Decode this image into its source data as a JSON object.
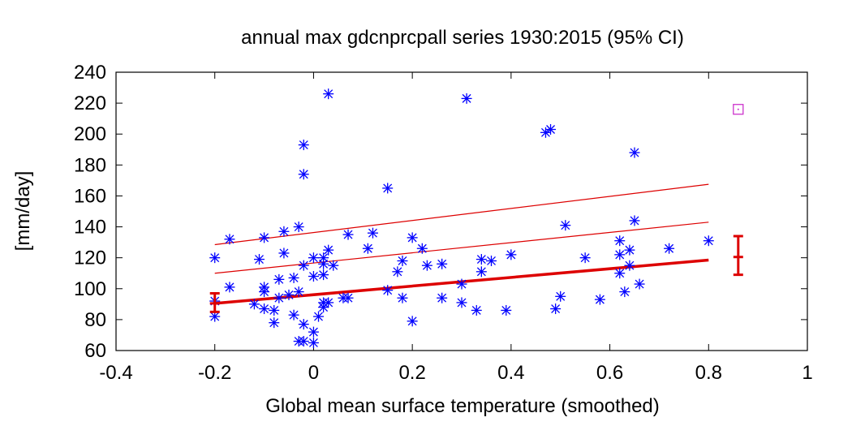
{
  "chart_data": {
    "type": "scatter",
    "title": "annual max gdcnprcpall series 1930:2015 (95% CI)",
    "xlabel": "Global mean surface temperature (smoothed)",
    "ylabel": "[mm/day]",
    "xlim": [
      -0.4,
      1.0
    ],
    "ylim": [
      60,
      240
    ],
    "xticks": [
      "-0.4",
      "-0.2",
      "0",
      "0.2",
      "0.4",
      "0.6",
      "0.8",
      "1"
    ],
    "yticks": [
      "60",
      "80",
      "100",
      "120",
      "140",
      "160",
      "180",
      "200",
      "220",
      "240"
    ],
    "grid": false,
    "legend": "none",
    "colors": {
      "points": "#0000ff",
      "fit": "#dd0000",
      "marker_2015": "#cc33cc",
      "axes": "#000000"
    },
    "points": [
      [
        0.03,
        226
      ],
      [
        0.31,
        223
      ],
      [
        0.48,
        203
      ],
      [
        0.47,
        201
      ],
      [
        -0.02,
        193
      ],
      [
        0.65,
        188
      ],
      [
        -0.02,
        174
      ],
      [
        0.15,
        165
      ],
      [
        -0.03,
        140
      ],
      [
        0.51,
        141
      ],
      [
        0.65,
        144
      ],
      [
        -0.06,
        137
      ],
      [
        0.07,
        135
      ],
      [
        0.12,
        136
      ],
      [
        -0.17,
        132
      ],
      [
        -0.1,
        133
      ],
      [
        0.2,
        133
      ],
      [
        0.62,
        131
      ],
      [
        0.8,
        131
      ],
      [
        0.72,
        126
      ],
      [
        0.64,
        125
      ],
      [
        0.11,
        126
      ],
      [
        0.22,
        126
      ],
      [
        0.03,
        125
      ],
      [
        -0.06,
        123
      ],
      [
        0.4,
        122
      ],
      [
        0.62,
        122
      ],
      [
        -0.2,
        120
      ],
      [
        -0.11,
        119
      ],
      [
        0.0,
        120
      ],
      [
        0.02,
        120
      ],
      [
        0.55,
        120
      ],
      [
        0.34,
        119
      ],
      [
        0.18,
        118
      ],
      [
        0.36,
        118
      ],
      [
        0.26,
        116
      ],
      [
        0.02,
        116
      ],
      [
        -0.02,
        115
      ],
      [
        0.04,
        115
      ],
      [
        0.23,
        115
      ],
      [
        0.64,
        115
      ],
      [
        0.17,
        111
      ],
      [
        0.34,
        111
      ],
      [
        0.62,
        110
      ],
      [
        0.0,
        108
      ],
      [
        0.02,
        109
      ],
      [
        -0.04,
        107
      ],
      [
        -0.07,
        106
      ],
      [
        0.3,
        103
      ],
      [
        0.66,
        103
      ],
      [
        0.63,
        98
      ],
      [
        -0.1,
        101
      ],
      [
        -0.17,
        101
      ],
      [
        -0.1,
        98
      ],
      [
        0.15,
        99
      ],
      [
        -0.03,
        98
      ],
      [
        0.06,
        94
      ],
      [
        0.07,
        94
      ],
      [
        -0.07,
        94
      ],
      [
        -0.05,
        96
      ],
      [
        0.18,
        94
      ],
      [
        0.26,
        94
      ],
      [
        0.5,
        95
      ],
      [
        0.58,
        93
      ],
      [
        -0.2,
        92
      ],
      [
        -0.12,
        90
      ],
      [
        0.02,
        91
      ],
      [
        0.03,
        91
      ],
      [
        0.3,
        91
      ],
      [
        -0.1,
        87
      ],
      [
        -0.08,
        86
      ],
      [
        0.02,
        88
      ],
      [
        0.33,
        86
      ],
      [
        0.39,
        86
      ],
      [
        0.49,
        87
      ],
      [
        -0.2,
        82
      ],
      [
        -0.04,
        83
      ],
      [
        0.01,
        82
      ],
      [
        -0.08,
        78
      ],
      [
        -0.02,
        77
      ],
      [
        0.2,
        79
      ],
      [
        0.0,
        72
      ],
      [
        -0.02,
        66
      ],
      [
        -0.03,
        66
      ],
      [
        0.0,
        65
      ]
    ],
    "fit_line": {
      "x": [
        -0.2,
        0.8
      ],
      "y": [
        90.5,
        118.5
      ]
    },
    "return_level_10yr": {
      "x": [
        -0.2,
        0.8
      ],
      "y": [
        110,
        143
      ]
    },
    "return_level_100yr": {
      "x": [
        -0.2,
        0.8
      ],
      "y": [
        128.5,
        167.5
      ]
    },
    "error_bars": [
      {
        "x": -0.2,
        "center": 90.5,
        "low": 85,
        "high": 97
      },
      {
        "x": 0.86,
        "center": 120.5,
        "low": 109,
        "high": 134
      }
    ],
    "marker_2015": {
      "x": 0.86,
      "y": 216
    }
  }
}
